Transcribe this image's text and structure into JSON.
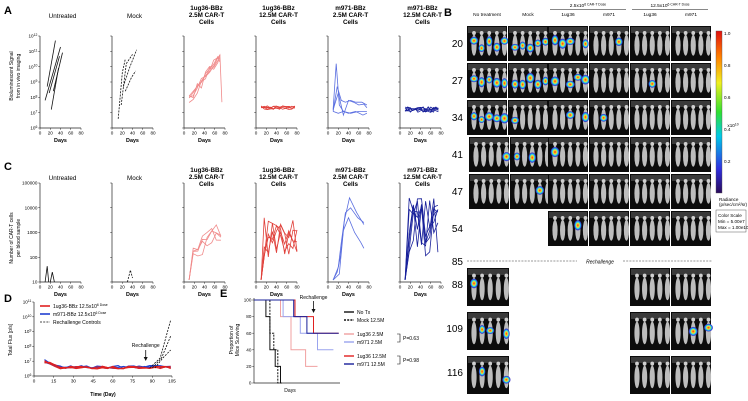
{
  "panels": {
    "A": {
      "label": "A",
      "ylabel": [
        "Bioluminescent Signal",
        "from in vivo imaging"
      ],
      "xlabel": "Days",
      "yticks": [
        "10^12",
        "10^11",
        "10^10",
        "10^9",
        "10^8",
        "10^7",
        "10^6"
      ],
      "xticks": [
        "0",
        "20",
        "40",
        "60",
        "80"
      ],
      "subplots": [
        {
          "title": [
            "Untreated"
          ],
          "color": "#111111",
          "dashed": false
        },
        {
          "title": [
            "Mock"
          ],
          "color": "#111111",
          "dashed": true
        },
        {
          "title": [
            "1ug36-BBz",
            "2.5M CAR-T",
            "Cells"
          ],
          "color": "#f08a8a",
          "dashed": false
        },
        {
          "title": [
            "1ug36-BBz",
            "12.5M CAR-T",
            "Cells"
          ],
          "color": "#e0403a",
          "dashed": false
        },
        {
          "title": [
            "m971-BBz",
            "2.5M CAR-T",
            "Cells"
          ],
          "color": "#5a6ee0",
          "dashed": false
        },
        {
          "title": [
            "m971-BBz",
            "12.5M CAR-T",
            "Cells"
          ],
          "color": "#18209a",
          "dashed": false
        }
      ]
    },
    "C": {
      "label": "C",
      "ylabel": [
        "Number of CAR-T cells",
        "per blood sample"
      ],
      "xlabel": "Days",
      "yticks": [
        "100000",
        "10000",
        "1000",
        "100",
        "10"
      ],
      "xticks": [
        "0",
        "20",
        "40",
        "60",
        "80"
      ]
    },
    "B": {
      "label": "B",
      "col_headers": [
        "No treatment",
        "Mock",
        "1ug36",
        "m971",
        "1ug36",
        "m971"
      ],
      "dose_headers": [
        "2.5x10^6 CAR-T Dose",
        "12.5x10^6 CAR-T Dose"
      ],
      "days": [
        "20",
        "27",
        "34",
        "41",
        "47",
        "54"
      ],
      "rechallenge_day": "85",
      "rechallenge_label": "Rechallenge",
      "post_days": [
        "88",
        "109",
        "116"
      ],
      "colorbar": {
        "max": "1.0",
        "mid_values": [
          "0.8",
          "0.6",
          "0.4",
          "0.2"
        ],
        "exponent": "x10^10",
        "radiance_label": [
          "Radiance",
          "(p/sec/cm²/sr)"
        ],
        "scale_lines": [
          "Color Scale",
          "Min = 5.00e7",
          "Max = 1.00e10"
        ]
      }
    },
    "D": {
      "label": "D",
      "ylabel": "Total Flux [p/s]",
      "xlabel": "Time (Day)",
      "yticks": [
        "10^11",
        "10^10",
        "10^9",
        "10^8",
        "10^7",
        "10^6"
      ],
      "xticks": [
        "0",
        "15",
        "30",
        "45",
        "60",
        "75",
        "90",
        "105"
      ],
      "annotation": "Rechallenge",
      "legend": [
        {
          "label": "1ug36-BBz 12.5x10^6 Dose",
          "color": "#e02020",
          "dashed": false
        },
        {
          "label": "m971-BBz 12.5x10^6 Dose",
          "color": "#2040d0",
          "dashed": false
        },
        {
          "label": "Rechallenge Controls",
          "color": "#111111",
          "dashed": true
        }
      ]
    },
    "E": {
      "label": "E",
      "ylabel": [
        "Proportion of",
        "Mice Surviving"
      ],
      "xlabel": "Days",
      "yticks": [
        "100",
        "80",
        "60",
        "40",
        "20",
        "0"
      ],
      "annotation": "Rechallenge",
      "legend": [
        {
          "label": "No Tx",
          "color": "#111111",
          "dashed": false
        },
        {
          "label": "Mock 12.5M",
          "color": "#111111",
          "dashed": true
        },
        {
          "label": "1ug36 2.5M",
          "color": "#f0a0a0",
          "dashed": false
        },
        {
          "label": "m971 2.5M",
          "color": "#9aa4ee",
          "dashed": false
        },
        {
          "label": "1ug36 12.5M",
          "color": "#e02020",
          "dashed": false
        },
        {
          "label": "m971 12.5M",
          "color": "#18209a",
          "dashed": false
        }
      ],
      "pvalues": [
        "P=0.63",
        "P=0.98"
      ]
    }
  }
}
